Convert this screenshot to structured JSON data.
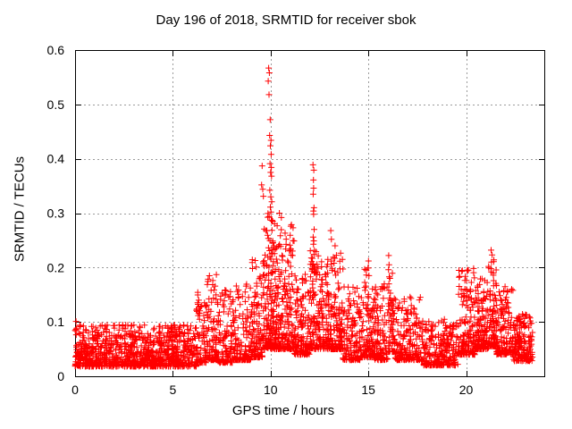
{
  "chart_data": {
    "type": "scatter",
    "title": "Day 196 of 2018, SRMTID for receiver sbok",
    "xlabel": "GPS time / hours",
    "ylabel": "SRMTID / TECUs",
    "xlim": [
      0,
      24
    ],
    "ylim": [
      0,
      0.6
    ],
    "xticks": [
      {
        "value": 0,
        "label": "0"
      },
      {
        "value": 5,
        "label": "5"
      },
      {
        "value": 10,
        "label": "10"
      },
      {
        "value": 15,
        "label": "15"
      },
      {
        "value": 20,
        "label": "20"
      }
    ],
    "yticks": [
      {
        "value": 0.0,
        "label": "0"
      },
      {
        "value": 0.1,
        "label": "0.1"
      },
      {
        "value": 0.2,
        "label": "0.2"
      },
      {
        "value": 0.3,
        "label": "0.3"
      },
      {
        "value": 0.4,
        "label": "0.4"
      },
      {
        "value": 0.5,
        "label": "0.5"
      },
      {
        "value": 0.6,
        "label": "0.6"
      }
    ],
    "grid": true,
    "legend": "none",
    "marker": {
      "shape": "plus",
      "size": 7,
      "color": "#ff0000"
    },
    "axis_color": "#000000",
    "grid_color": "#9b9b9b",
    "background": "#ffffff",
    "generator": {
      "seed": 20181961,
      "segments": [
        [
          0.0,
          6.2,
          950,
          0.018,
          0.095,
          1.8
        ],
        [
          6.2,
          6.7,
          70,
          0.025,
          0.155,
          2.2
        ],
        [
          6.7,
          7.3,
          95,
          0.03,
          0.19,
          2.3
        ],
        [
          7.3,
          8.1,
          115,
          0.025,
          0.16,
          2.4
        ],
        [
          8.1,
          9.0,
          130,
          0.03,
          0.17,
          2.6
        ],
        [
          9.0,
          9.6,
          110,
          0.035,
          0.22,
          2.4
        ],
        [
          9.6,
          10.35,
          200,
          0.05,
          0.3,
          2.2
        ],
        [
          10.35,
          11.2,
          175,
          0.05,
          0.28,
          2.4
        ],
        [
          11.2,
          12.0,
          140,
          0.04,
          0.19,
          2.2
        ],
        [
          12.0,
          12.45,
          90,
          0.05,
          0.24,
          2.2
        ],
        [
          12.45,
          13.05,
          110,
          0.05,
          0.22,
          2.2
        ],
        [
          13.05,
          13.7,
          125,
          0.05,
          0.24,
          2.5
        ],
        [
          13.7,
          14.6,
          130,
          0.03,
          0.165,
          2.2
        ],
        [
          14.6,
          15.3,
          110,
          0.035,
          0.2,
          2.4
        ],
        [
          15.3,
          16.0,
          110,
          0.03,
          0.17,
          2.3
        ],
        [
          16.0,
          16.35,
          60,
          0.045,
          0.2,
          2.0
        ],
        [
          16.35,
          17.7,
          185,
          0.03,
          0.15,
          2.4
        ],
        [
          17.7,
          19.6,
          265,
          0.02,
          0.105,
          2.0
        ],
        [
          19.6,
          20.45,
          150,
          0.04,
          0.2,
          2.5
        ],
        [
          20.45,
          21.15,
          130,
          0.05,
          0.18,
          2.2
        ],
        [
          21.15,
          21.55,
          90,
          0.055,
          0.215,
          2.2
        ],
        [
          21.55,
          22.4,
          140,
          0.04,
          0.165,
          2.3
        ],
        [
          22.4,
          23.4,
          165,
          0.028,
          0.115,
          2.0
        ]
      ]
    },
    "outliers": [
      [
        0.05,
        0.101
      ],
      [
        9.57,
        0.387
      ],
      [
        9.54,
        0.352
      ],
      [
        9.6,
        0.344
      ],
      [
        9.63,
        0.331
      ],
      [
        9.9,
        0.567
      ],
      [
        9.94,
        0.558
      ],
      [
        9.88,
        0.543
      ],
      [
        9.92,
        0.518
      ],
      [
        9.98,
        0.472
      ],
      [
        9.95,
        0.443
      ],
      [
        10.02,
        0.434
      ],
      [
        9.99,
        0.424
      ],
      [
        10.03,
        0.408
      ],
      [
        9.97,
        0.391
      ],
      [
        10.04,
        0.384
      ],
      [
        10.0,
        0.375
      ],
      [
        10.05,
        0.368
      ],
      [
        9.96,
        0.342
      ],
      [
        10.01,
        0.33
      ],
      [
        10.06,
        0.321
      ],
      [
        9.99,
        0.311
      ],
      [
        10.02,
        0.302
      ],
      [
        9.93,
        0.294
      ],
      [
        10.07,
        0.287
      ],
      [
        10.45,
        0.3
      ],
      [
        10.55,
        0.292
      ],
      [
        12.17,
        0.389
      ],
      [
        12.21,
        0.379
      ],
      [
        12.19,
        0.361
      ],
      [
        12.2,
        0.346
      ],
      [
        12.18,
        0.335
      ],
      [
        12.22,
        0.31
      ],
      [
        12.19,
        0.304
      ],
      [
        12.2,
        0.298
      ],
      [
        12.23,
        0.27
      ],
      [
        12.18,
        0.256
      ],
      [
        12.21,
        0.249
      ],
      [
        12.19,
        0.243
      ],
      [
        13.08,
        0.268
      ],
      [
        13.11,
        0.252
      ],
      [
        15.01,
        0.212
      ],
      [
        14.98,
        0.199
      ],
      [
        16.04,
        0.222
      ],
      [
        16.06,
        0.205
      ],
      [
        16.03,
        0.196
      ],
      [
        16.07,
        0.183
      ],
      [
        16.05,
        0.17
      ],
      [
        16.04,
        0.158
      ],
      [
        21.28,
        0.232
      ],
      [
        21.33,
        0.223
      ],
      [
        21.3,
        0.21
      ],
      [
        21.27,
        0.198
      ]
    ]
  }
}
